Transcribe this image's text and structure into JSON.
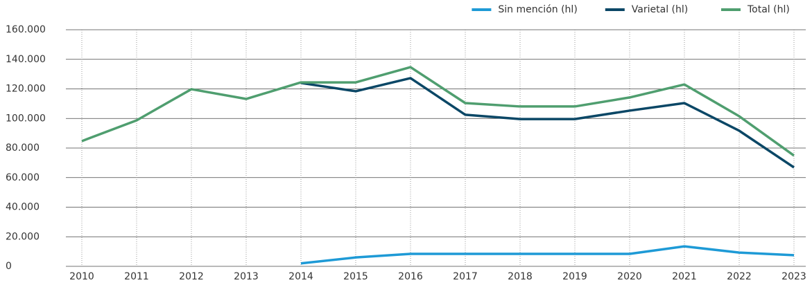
{
  "chart_data": {
    "type": "line",
    "categories": [
      "2010",
      "2011",
      "2012",
      "2013",
      "2014",
      "2015",
      "2016",
      "2017",
      "2018",
      "2019",
      "2020",
      "2021",
      "2022",
      "2023"
    ],
    "series": [
      {
        "name": "Sin mención (hl)",
        "color": "#1e9ad6",
        "values": [
          null,
          null,
          null,
          null,
          2000,
          6000,
          8400,
          8400,
          8400,
          8400,
          8400,
          13500,
          9300,
          7500
        ]
      },
      {
        "name": "Varietal (hl)",
        "color": "#0b4766",
        "values": [
          null,
          null,
          null,
          null,
          124000,
          118400,
          127300,
          102500,
          99600,
          99600,
          105300,
          110400,
          91700,
          66900
        ]
      },
      {
        "name": "Total (hl)",
        "color": "#4f9e6f",
        "values": [
          84700,
          98700,
          119800,
          113200,
          124400,
          124400,
          134700,
          110400,
          108100,
          108100,
          114200,
          123000,
          101500,
          74900
        ]
      }
    ],
    "ylim": [
      0,
      160000
    ],
    "yticks": [
      0,
      {
        "value": 20000,
        "label": "20.000"
      },
      {
        "value": 40000,
        "label": "40.000"
      },
      {
        "value": 60000,
        "label": "60.000"
      },
      {
        "value": 80000,
        "label": "80.000"
      },
      {
        "value": 100000,
        "label": "100.000"
      },
      {
        "value": 120000,
        "label": "120.000"
      },
      {
        "value": 140000,
        "label": "140.000"
      },
      {
        "value": 160000,
        "label": "160.000"
      }
    ],
    "grid": true,
    "legend": "top-right"
  }
}
